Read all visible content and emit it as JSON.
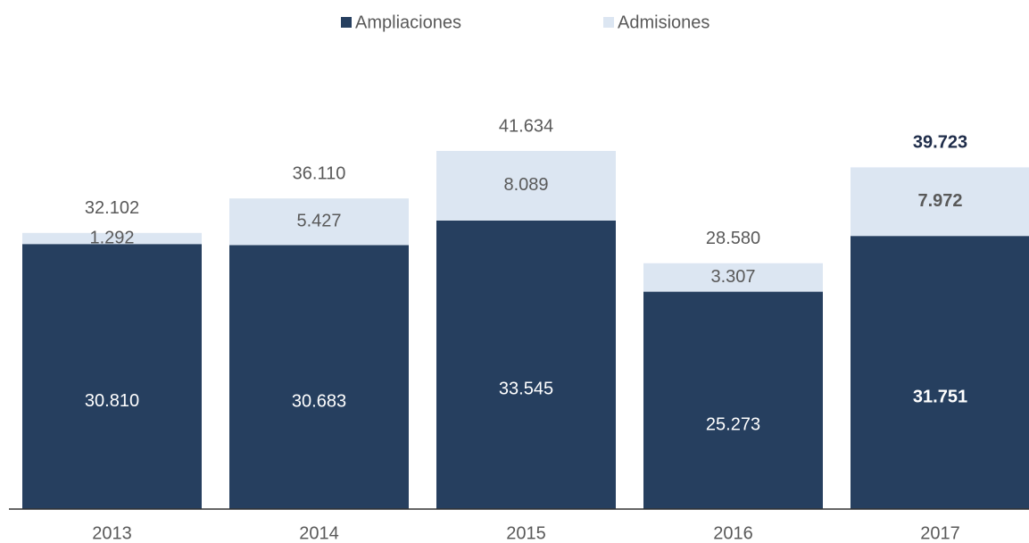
{
  "chart_data": {
    "type": "stacked_bar",
    "categories": [
      "2013",
      "2014",
      "2015",
      "2016",
      "2017"
    ],
    "series": [
      {
        "name": "Ampliaciones",
        "color": "#263f5f",
        "values": [
          30810,
          30683,
          33545,
          25273,
          31751
        ],
        "value_labels": [
          "30.810",
          "30.683",
          "33.545",
          "25.273",
          "31.751"
        ]
      },
      {
        "name": "Admisiones",
        "color": "#dce6f2",
        "values": [
          1292,
          5427,
          8089,
          3307,
          7972
        ],
        "value_labels": [
          "1.292",
          "5.427",
          "8.089",
          "3.307",
          "7.972"
        ]
      }
    ],
    "totals": {
      "values": [
        32102,
        36110,
        41634,
        28580,
        39723
      ],
      "value_labels": [
        "32.102",
        "36.110",
        "41.634",
        "28.580",
        "39.723"
      ]
    },
    "legend": "top"
  }
}
